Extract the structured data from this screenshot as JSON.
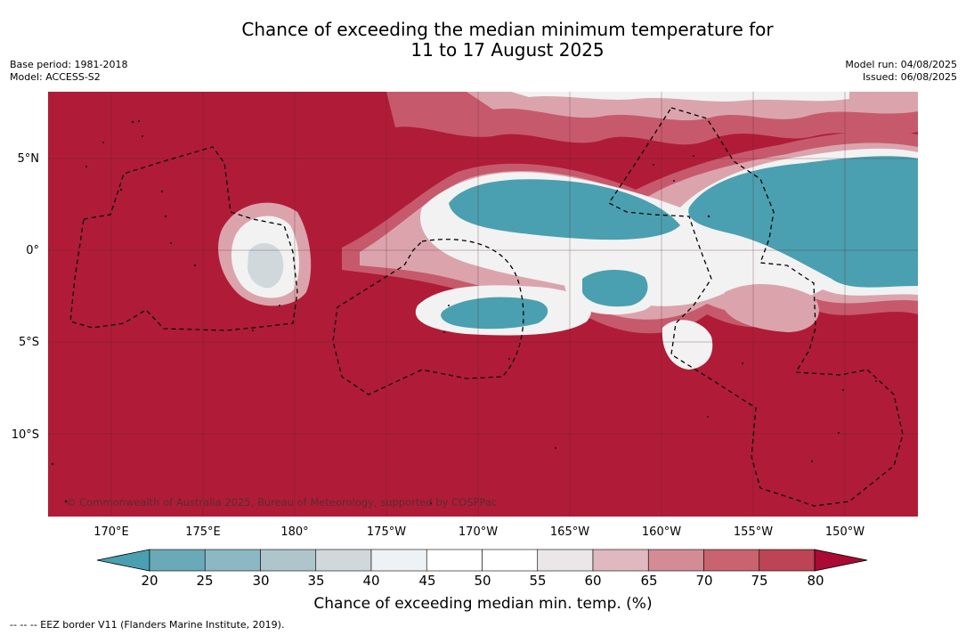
{
  "title": {
    "line1": "Chance of exceeding the median minimum temperature for",
    "line2": "11 to 17 August 2025"
  },
  "meta_left": {
    "base_period": "Base period: 1981-2018",
    "model": "Model: ACCESS-S2"
  },
  "meta_right": {
    "model_run": "Model run: 04/08/2025",
    "issued": "Issued: 06/08/2025"
  },
  "map": {
    "lat_labels": [
      "5°N",
      "0°",
      "5°S",
      "10°S"
    ],
    "lon_labels": [
      "170°E",
      "175°E",
      "180°",
      "175°W",
      "170°W",
      "165°W",
      "160°W",
      "155°W",
      "150°W"
    ],
    "copyright": "© Commonwealth of Australia 2025, Bureau of Meteorology, supported by COSPPac",
    "dominant_category": "80+",
    "colors": {
      "above_80": "#b01c37",
      "70_80": "#c65a6c",
      "60_70": "#dba4ac",
      "50_60": "#f2f2f2",
      "below_30": "#4aa0b0"
    }
  },
  "colorbar": {
    "ticks": [
      "20",
      "25",
      "30",
      "35",
      "40",
      "45",
      "50",
      "55",
      "60",
      "65",
      "70",
      "75",
      "80"
    ],
    "colors": [
      "#4aa0b0",
      "#6aa9b7",
      "#8bb8c3",
      "#adc5cb",
      "#d0d8db",
      "#eef2f4",
      "#ffffff",
      "#ffffff",
      "#ebe7e8",
      "#dfb9bf",
      "#d38c95",
      "#c8636f",
      "#bd4454",
      "#aa0a33"
    ],
    "label": "Chance of exceeding median min. temp. (%)"
  },
  "footnote": "--  --  -- EEZ border V11 (Flanders Marine Institute, 2019)."
}
